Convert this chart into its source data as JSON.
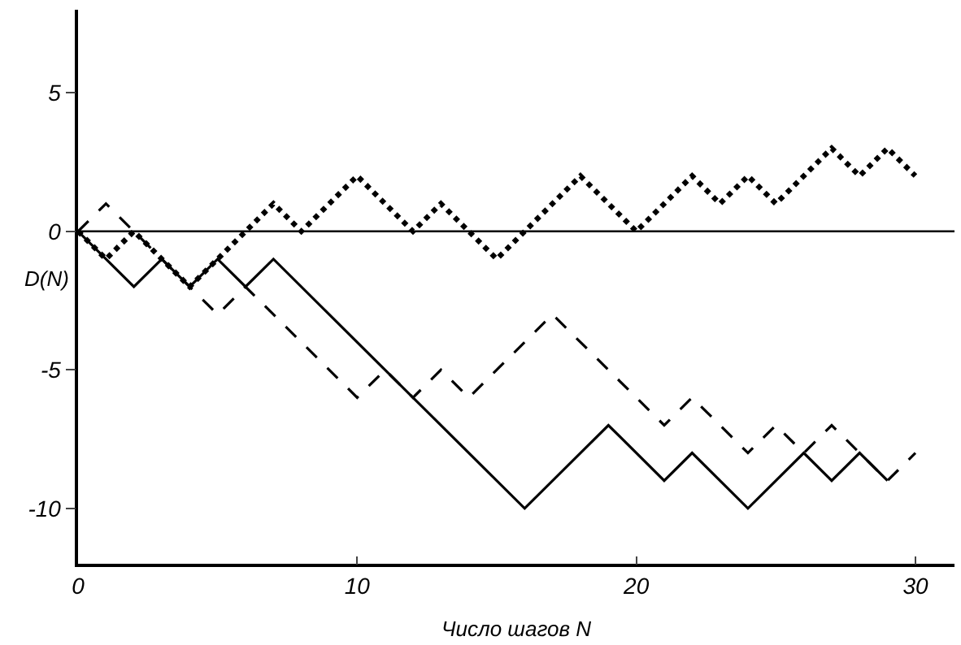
{
  "chart_data": {
    "type": "line",
    "xlabel": "Число шагов N",
    "ylabel": "D(N)",
    "xlim": [
      0,
      31.4
    ],
    "ylim": [
      -12,
      8
    ],
    "xticks": [
      0,
      10,
      20,
      30
    ],
    "yticks": [
      -10,
      -5,
      0,
      5
    ],
    "marker": "none",
    "ref_lines": [
      {
        "axis": "y",
        "value": 0,
        "color": "#000000",
        "line_style": "solid"
      }
    ],
    "series": [
      {
        "color": "#000000",
        "line_style": "solid",
        "x": [
          0,
          2,
          3,
          4,
          5,
          6,
          7,
          16,
          19,
          21,
          22,
          24,
          26,
          27,
          28,
          29
        ],
        "values": [
          0,
          -2,
          -1,
          -2,
          -1,
          -2,
          -1,
          -10,
          -7,
          -9,
          -8,
          -10,
          -8,
          -9,
          -8,
          -9
        ]
      },
      {
        "color": "#000000",
        "line_style": "dashed",
        "x": [
          0,
          1,
          5,
          6,
          10,
          11,
          12,
          13,
          14,
          17,
          21,
          22,
          24,
          25,
          26,
          27,
          29,
          30
        ],
        "values": [
          0,
          1,
          -3,
          -2,
          -6,
          -5,
          -6,
          -5,
          -6,
          -3,
          -7,
          -6,
          -8,
          -7,
          -8,
          -7,
          -9,
          -8
        ]
      },
      {
        "color": "#000000",
        "line_style": "dotted",
        "x": [
          0,
          1,
          2,
          4,
          7,
          8,
          10,
          12,
          13,
          15,
          18,
          20,
          22,
          23,
          24,
          25,
          27,
          28,
          29,
          30
        ],
        "values": [
          0,
          -1,
          0,
          -2,
          1,
          0,
          2,
          0,
          1,
          -1,
          2,
          0,
          2,
          1,
          2,
          1,
          3,
          2,
          3,
          2
        ]
      }
    ]
  }
}
